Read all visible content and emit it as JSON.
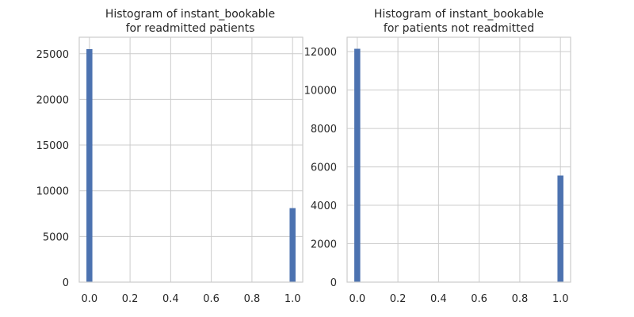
{
  "chart_data": [
    {
      "type": "bar",
      "title_line1": "Histogram of instant_bookable",
      "title_line2": "for readmitted patients",
      "xlabel": "",
      "ylabel": "",
      "xlim": [
        -0.05,
        1.05
      ],
      "ylim": [
        0,
        26800
      ],
      "x_ticks": [
        0.0,
        0.2,
        0.4,
        0.6,
        0.8,
        1.0
      ],
      "x_tick_labels": [
        "0.0",
        "0.2",
        "0.4",
        "0.6",
        "0.8",
        "1.0"
      ],
      "y_ticks": [
        0,
        5000,
        10000,
        15000,
        20000,
        25000
      ],
      "y_tick_labels": [
        "0",
        "5000",
        "10000",
        "15000",
        "20000",
        "25000"
      ],
      "grid": true,
      "bars": [
        {
          "x": 0.0,
          "count": 25500
        },
        {
          "x": 1.0,
          "count": 8100
        }
      ],
      "color": "#4c72b0"
    },
    {
      "type": "bar",
      "title_line1": "Histogram of instant_bookable",
      "title_line2": "for patients not readmitted",
      "xlabel": "",
      "ylabel": "",
      "xlim": [
        -0.05,
        1.05
      ],
      "ylim": [
        0,
        12750
      ],
      "x_ticks": [
        0.0,
        0.2,
        0.4,
        0.6,
        0.8,
        1.0
      ],
      "x_tick_labels": [
        "0.0",
        "0.2",
        "0.4",
        "0.6",
        "0.8",
        "1.0"
      ],
      "y_ticks": [
        0,
        2000,
        4000,
        6000,
        8000,
        10000,
        12000
      ],
      "y_tick_labels": [
        "0",
        "2000",
        "4000",
        "6000",
        "8000",
        "10000",
        "12000"
      ],
      "grid": true,
      "bars": [
        {
          "x": 0.0,
          "count": 12150
        },
        {
          "x": 1.0,
          "count": 5550
        }
      ],
      "color": "#4c72b0"
    }
  ]
}
